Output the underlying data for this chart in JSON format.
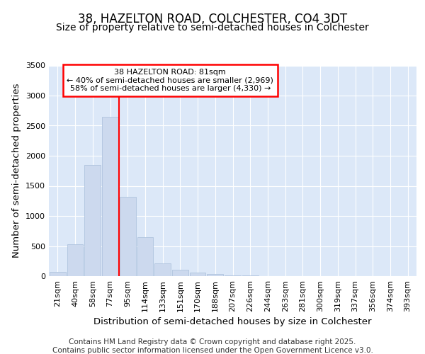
{
  "title_line1": "38, HAZELTON ROAD, COLCHESTER, CO4 3DT",
  "title_line2": "Size of property relative to semi-detached houses in Colchester",
  "xlabel": "Distribution of semi-detached houses by size in Colchester",
  "ylabel": "Number of semi-detached properties",
  "bar_color": "#ccd9ee",
  "bar_edge_color": "#b0c4de",
  "bar_categories": [
    "21sqm",
    "40sqm",
    "58sqm",
    "77sqm",
    "95sqm",
    "114sqm",
    "133sqm",
    "151sqm",
    "170sqm",
    "188sqm",
    "207sqm",
    "226sqm",
    "244sqm",
    "263sqm",
    "281sqm",
    "300sqm",
    "319sqm",
    "337sqm",
    "356sqm",
    "374sqm",
    "393sqm"
  ],
  "bar_values": [
    70,
    530,
    1850,
    2650,
    1320,
    650,
    210,
    110,
    60,
    40,
    10,
    8,
    4,
    2,
    0,
    0,
    0,
    0,
    0,
    0,
    0
  ],
  "ylim": [
    0,
    3500
  ],
  "yticks": [
    0,
    500,
    1000,
    1500,
    2000,
    2500,
    3000,
    3500
  ],
  "red_line_index": 3.5,
  "annotation_title": "38 HAZELTON ROAD: 81sqm",
  "annotation_line1": "← 40% of semi-detached houses are smaller (2,969)",
  "annotation_line2": "58% of semi-detached houses are larger (4,330) →",
  "footer_line1": "Contains HM Land Registry data © Crown copyright and database right 2025.",
  "footer_line2": "Contains public sector information licensed under the Open Government Licence v3.0.",
  "fig_bg_color": "#ffffff",
  "plot_bg_color": "#dce8f8",
  "grid_color": "#ffffff",
  "title_fontsize": 12,
  "subtitle_fontsize": 10,
  "axis_label_fontsize": 9.5,
  "tick_fontsize": 8,
  "footer_fontsize": 7.5
}
